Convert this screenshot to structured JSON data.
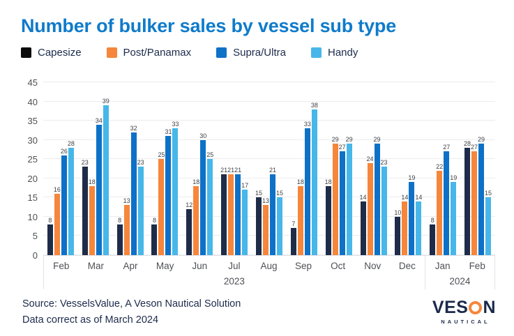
{
  "header": {
    "title": "Number of bulker sales by vessel sub type"
  },
  "legend": {
    "items": [
      {
        "label": "Capesize",
        "color": "#0b0b0b"
      },
      {
        "label": "Post/Panamax",
        "color": "#f6863b"
      },
      {
        "label": "Supra/Ultra",
        "color": "#0e71c8"
      },
      {
        "label": "Handy",
        "color": "#47b7e9"
      }
    ]
  },
  "chart_data": {
    "type": "bar",
    "title": "Number of bulker sales by vessel sub type",
    "categories": [
      "Feb",
      "Mar",
      "Apr",
      "May",
      "Jun",
      "Jul",
      "Aug",
      "Sep",
      "Oct",
      "Nov",
      "Dec",
      "Jan",
      "Feb"
    ],
    "year_groups": [
      {
        "label": "2023",
        "count": 11
      },
      {
        "label": "2024",
        "count": 2
      }
    ],
    "series": [
      {
        "name": "Capesize",
        "color": "#1e2c49",
        "values": [
          8,
          23,
          8,
          8,
          12,
          21,
          15,
          7,
          18,
          14,
          10,
          8,
          28
        ]
      },
      {
        "name": "Post/Panamax",
        "color": "#f6863b",
        "values": [
          16,
          18,
          13,
          25,
          18,
          21,
          13,
          18,
          29,
          24,
          14,
          22,
          27
        ]
      },
      {
        "name": "Supra/Ultra",
        "color": "#0e71c8",
        "values": [
          26,
          34,
          32,
          31,
          30,
          21,
          21,
          33,
          27,
          29,
          19,
          27,
          29
        ]
      },
      {
        "name": "Handy",
        "color": "#47b7e9",
        "values": [
          28,
          39,
          23,
          33,
          25,
          17,
          15,
          38,
          29,
          23,
          14,
          19,
          15
        ]
      }
    ],
    "ylim": [
      0,
      45
    ],
    "yticks": [
      0,
      5,
      10,
      15,
      20,
      25,
      30,
      35,
      40,
      45
    ],
    "grid": true,
    "legend_position": "top",
    "value_labels": true
  },
  "footer": {
    "line1": "Source: VesselsValue, A Veson Nautical Solution",
    "line2": "Data correct as of March 2024"
  },
  "logo": {
    "text_before_o": "VES",
    "text_after_o": "N",
    "tagline": "NAUTICAL"
  },
  "colors": {
    "background": "#ffffff",
    "title": "#0f7bcb",
    "navy": "#1b2a4a",
    "axis_text": "#4e5055",
    "bar_label": "#3e4045",
    "grid_line": "#ececef",
    "axis_border": "#e2e2e6",
    "logo_orange": "#f6863b"
  }
}
